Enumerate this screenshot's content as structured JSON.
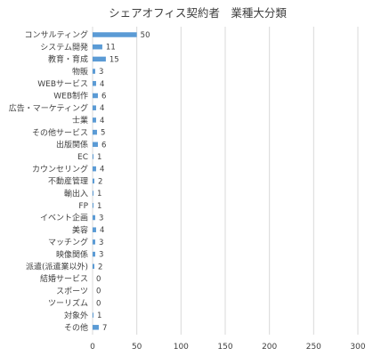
{
  "chart_data": {
    "type": "bar",
    "orientation": "horizontal",
    "title": "シェアオフィス契約者　業種大分類",
    "xlabel": "",
    "ylabel": "",
    "xlim": [
      0,
      300
    ],
    "x_ticks": [
      0,
      50,
      100,
      150,
      200,
      250,
      300
    ],
    "grid": true,
    "legend": "none",
    "data_labels": true,
    "colors": {
      "bar": "#5B9BD5",
      "grid": "#D9D9D9",
      "text": "#404040"
    },
    "categories": [
      "コンサルティング",
      "システム開発",
      "教育・育成",
      "物販",
      "WEBサービス",
      "WEB制作",
      "広告・マーケティング",
      "士業",
      "その他サービス",
      "出版関係",
      "EC",
      "カウンセリング",
      "不動産管理",
      "輸出入",
      "FP",
      "イベント企画",
      "美容",
      "マッチング",
      "映像関係",
      "派遣(派遣業以外)",
      "結婚サービス",
      "スポーツ",
      "ツーリズム",
      "対象外",
      "その他"
    ],
    "values": [
      50,
      11,
      15,
      3,
      4,
      6,
      4,
      4,
      5,
      6,
      1,
      4,
      2,
      1,
      1,
      3,
      4,
      3,
      3,
      2,
      0,
      0,
      0,
      1,
      7
    ]
  }
}
